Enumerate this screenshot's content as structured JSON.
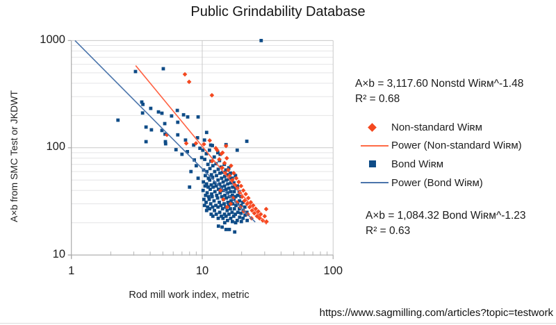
{
  "title": "Public Grindability Database",
  "footer_url": "https://www.sagmilling.com/articles?topic=testwork",
  "axes": {
    "x": {
      "title": "Rod mill work index, metric",
      "ticks": [
        "1",
        "10",
        "100"
      ]
    },
    "y": {
      "title": "A×b from SMC Test or JKDWT",
      "ticks": [
        "1000",
        "100",
        "10"
      ]
    }
  },
  "equations": {
    "nonstd": {
      "line1": "A×b = 3,117.60 Nonstd Wiʀᴍ^-1.48",
      "line2": "R² = 0.68",
      "color": "#f20d0d"
    },
    "bond": {
      "line1": "A×b = 1,084.32 Bond Wiʀᴍ^-1.23",
      "line2": "R² = 0.63",
      "color": "#1e5bad"
    }
  },
  "legend": [
    {
      "label": "Non-standard Wiʀᴍ",
      "marker": "diamond",
      "color": "#f4481f"
    },
    {
      "label": "Power (Non-standard Wiʀᴍ)",
      "marker": "line",
      "color": "#ff6a45"
    },
    {
      "label": "Bond Wiʀᴍ",
      "marker": "square",
      "color": "#0f4c87"
    },
    {
      "label": "Power (Bond Wiʀᴍ)",
      "marker": "line",
      "color": "#4a74ab"
    }
  ],
  "chart_data": {
    "type": "scatter",
    "title": "Public Grindability Database",
    "xlabel": "Rod mill work index, metric",
    "ylabel": "A×b from SMC Test or JKDWT",
    "x_scale": "log",
    "y_scale": "log",
    "x_range": [
      1,
      100
    ],
    "y_range": [
      10,
      1000
    ],
    "grid": "horizontal log minor + major, vertical major",
    "legend_position": "right",
    "series": [
      {
        "name": "Bond Wiʀᴍ",
        "marker": "square",
        "color": "#0f4c87",
        "points": [
          [
            2.27,
            181
          ],
          [
            3.09,
            514
          ],
          [
            5.04,
            546
          ],
          [
            3.45,
            267
          ],
          [
            3.52,
            254
          ],
          [
            4.04,
            233
          ],
          [
            3.5,
            211
          ],
          [
            4.63,
            216
          ],
          [
            4.92,
            210
          ],
          [
            5.83,
            198
          ],
          [
            6.45,
            223
          ],
          [
            7.2,
            203
          ],
          [
            7.74,
            194
          ],
          [
            9.3,
            194
          ],
          [
            6.5,
            173
          ],
          [
            3.72,
            156
          ],
          [
            4.09,
            147
          ],
          [
            4.92,
            145
          ],
          [
            5.17,
            168
          ],
          [
            6.5,
            132
          ],
          [
            3.72,
            114
          ],
          [
            5.23,
            114
          ],
          [
            5.25,
            109
          ],
          [
            5.2,
            134
          ],
          [
            8.0,
            43
          ],
          [
            9.3,
            52
          ],
          [
            6.3,
            96
          ],
          [
            7.0,
            87
          ],
          [
            7.7,
            92
          ],
          [
            8.7,
            77
          ],
          [
            9.9,
            81
          ],
          [
            8.2,
            60
          ],
          [
            9.0,
            68
          ],
          [
            7.45,
            118
          ],
          [
            8.6,
            106
          ],
          [
            9.6,
            99
          ],
          [
            10.4,
            118
          ],
          [
            9.2,
            124
          ],
          [
            10.8,
            139
          ],
          [
            11.6,
            106
          ],
          [
            21.9,
            115
          ],
          [
            18.5,
            95
          ],
          [
            15.2,
            107
          ],
          [
            13.7,
            87
          ],
          [
            28.2,
            1000
          ],
          [
            15.2,
            17.3
          ],
          [
            16.1,
            17.3
          ],
          [
            17.7,
            16.4
          ],
          [
            13.3,
            18.6
          ],
          [
            14.2,
            18.2
          ],
          [
            10.1,
            95
          ],
          [
            10.25,
            62
          ],
          [
            10.2,
            48
          ],
          [
            10.15,
            40
          ],
          [
            10.3,
            33
          ],
          [
            10.45,
            78
          ],
          [
            10.55,
            55
          ],
          [
            10.5,
            44
          ],
          [
            10.6,
            36
          ],
          [
            10.4,
            29
          ],
          [
            10.75,
            88
          ],
          [
            10.85,
            60
          ],
          [
            10.8,
            46
          ],
          [
            10.9,
            38
          ],
          [
            10.7,
            31
          ],
          [
            10.8,
            26
          ],
          [
            11.05,
            70
          ],
          [
            11.15,
            52
          ],
          [
            11.1,
            43
          ],
          [
            11.2,
            35
          ],
          [
            11.0,
            28
          ],
          [
            11.35,
            95
          ],
          [
            11.45,
            64
          ],
          [
            11.4,
            50
          ],
          [
            11.5,
            41
          ],
          [
            11.3,
            33
          ],
          [
            11.4,
            27
          ],
          [
            11.65,
            75
          ],
          [
            11.75,
            56
          ],
          [
            11.7,
            45
          ],
          [
            11.8,
            37
          ],
          [
            11.6,
            30
          ],
          [
            11.7,
            24
          ],
          [
            11.95,
            105
          ],
          [
            12.05,
            68
          ],
          [
            12.0,
            53
          ],
          [
            12.1,
            43
          ],
          [
            11.9,
            35
          ],
          [
            12.0,
            28
          ],
          [
            12.05,
            23
          ],
          [
            12.35,
            82
          ],
          [
            12.45,
            60
          ],
          [
            12.4,
            47
          ],
          [
            12.5,
            39
          ],
          [
            12.3,
            32
          ],
          [
            12.4,
            26
          ],
          [
            12.75,
            71
          ],
          [
            12.85,
            55
          ],
          [
            12.8,
            44
          ],
          [
            12.9,
            36
          ],
          [
            12.7,
            29
          ],
          [
            12.8,
            24
          ],
          [
            13.15,
            90
          ],
          [
            13.25,
            63
          ],
          [
            13.2,
            50
          ],
          [
            13.3,
            41
          ],
          [
            13.1,
            34
          ],
          [
            13.2,
            28
          ],
          [
            13.25,
            22
          ],
          [
            13.55,
            76
          ],
          [
            13.65,
            58
          ],
          [
            13.6,
            46
          ],
          [
            13.7,
            38
          ],
          [
            13.5,
            31
          ],
          [
            13.6,
            25
          ],
          [
            13.95,
            66
          ],
          [
            14.05,
            52
          ],
          [
            14.0,
            43
          ],
          [
            14.1,
            35
          ],
          [
            13.9,
            29
          ],
          [
            14.0,
            23
          ],
          [
            14.35,
            59
          ],
          [
            14.45,
            48
          ],
          [
            14.4,
            40
          ],
          [
            14.5,
            33
          ],
          [
            14.3,
            27
          ],
          [
            14.4,
            22
          ],
          [
            14.75,
            70
          ],
          [
            14.85,
            54
          ],
          [
            14.8,
            44
          ],
          [
            14.9,
            36
          ],
          [
            14.7,
            30
          ],
          [
            14.8,
            24
          ],
          [
            14.85,
            20
          ],
          [
            15.15,
            62
          ],
          [
            15.25,
            50
          ],
          [
            15.2,
            41
          ],
          [
            15.3,
            34
          ],
          [
            15.1,
            28
          ],
          [
            15.2,
            23
          ],
          [
            15.55,
            56
          ],
          [
            15.65,
            46
          ],
          [
            15.6,
            38
          ],
          [
            15.7,
            31
          ],
          [
            15.5,
            26
          ],
          [
            15.6,
            21
          ],
          [
            15.95,
            65
          ],
          [
            16.05,
            51
          ],
          [
            16.0,
            42
          ],
          [
            16.1,
            35
          ],
          [
            15.9,
            29
          ],
          [
            16.0,
            24
          ],
          [
            16.45,
            58
          ],
          [
            16.55,
            47
          ],
          [
            16.5,
            39
          ],
          [
            16.6,
            32
          ],
          [
            16.4,
            27
          ],
          [
            16.5,
            22
          ],
          [
            16.95,
            52
          ],
          [
            17.05,
            43
          ],
          [
            17.0,
            36
          ],
          [
            17.1,
            30
          ],
          [
            16.9,
            25
          ],
          [
            17.0,
            20.5
          ],
          [
            17.45,
            47
          ],
          [
            17.55,
            39
          ],
          [
            17.5,
            33
          ],
          [
            17.6,
            27
          ],
          [
            17.4,
            23
          ],
          [
            17.95,
            55
          ],
          [
            18.05,
            42
          ],
          [
            18.0,
            35
          ],
          [
            18.1,
            29
          ],
          [
            17.9,
            24
          ],
          [
            18.0,
            20
          ],
          [
            18.55,
            44
          ],
          [
            18.65,
            36
          ],
          [
            18.6,
            30
          ],
          [
            18.7,
            25
          ],
          [
            18.5,
            21
          ],
          [
            19.15,
            39
          ],
          [
            19.25,
            32
          ],
          [
            19.2,
            27
          ],
          [
            19.3,
            22.5
          ],
          [
            19.75,
            35
          ],
          [
            19.85,
            29
          ],
          [
            19.8,
            24.5
          ],
          [
            19.9,
            20.5
          ],
          [
            20.45,
            31
          ],
          [
            20.55,
            26
          ],
          [
            20.5,
            22
          ],
          [
            21.15,
            28
          ],
          [
            21.25,
            23.5
          ],
          [
            21.95,
            25
          ],
          [
            22.05,
            21
          ]
        ]
      },
      {
        "name": "Non-standard Wiʀᴍ",
        "marker": "diamond",
        "color": "#f4481f",
        "points": [
          [
            7.37,
            484
          ],
          [
            7.94,
            412
          ],
          [
            11.85,
            309
          ],
          [
            5.37,
            132
          ],
          [
            7.55,
            110
          ],
          [
            8.95,
            110
          ],
          [
            10.3,
            108
          ],
          [
            11.4,
            117
          ],
          [
            12.7,
            99
          ],
          [
            11.9,
            75
          ],
          [
            14.3,
            90
          ],
          [
            15.2,
            104
          ],
          [
            13.0,
            95
          ],
          [
            13.5,
            78
          ],
          [
            14.0,
            88
          ],
          [
            14.2,
            65
          ],
          [
            14.8,
            72
          ],
          [
            15.0,
            58
          ],
          [
            15.4,
            80
          ],
          [
            15.8,
            62
          ],
          [
            16.2,
            55
          ],
          [
            16.6,
            68
          ],
          [
            17.0,
            50
          ],
          [
            17.4,
            58
          ],
          [
            17.8,
            45
          ],
          [
            18.2,
            52
          ],
          [
            18.6,
            42
          ],
          [
            19.0,
            48
          ],
          [
            19.4,
            38
          ],
          [
            19.8,
            44
          ],
          [
            20.2,
            35
          ],
          [
            20.6,
            40
          ],
          [
            21.0,
            32
          ],
          [
            21.5,
            37
          ],
          [
            22.0,
            30
          ],
          [
            22.5,
            34
          ],
          [
            23.0,
            28
          ],
          [
            23.5,
            31
          ],
          [
            24.0,
            26
          ],
          [
            24.5,
            29
          ],
          [
            25.0,
            24.5
          ],
          [
            25.6,
            27
          ],
          [
            26.2,
            23
          ],
          [
            26.8,
            25.5
          ],
          [
            27.4,
            22
          ],
          [
            28.0,
            24
          ],
          [
            29.0,
            21
          ],
          [
            30.0,
            23
          ],
          [
            30.8,
            26.8
          ],
          [
            31.0,
            20.5
          ],
          [
            14.5,
            33
          ],
          [
            15.5,
            28
          ],
          [
            16.5,
            30
          ],
          [
            13.8,
            40
          ],
          [
            17.2,
            34
          ],
          [
            18.4,
            31
          ],
          [
            19.6,
            28
          ],
          [
            20.8,
            25.5
          ],
          [
            22.3,
            24
          ],
          [
            23.8,
            22
          ]
        ]
      }
    ],
    "trendlines": [
      {
        "name": "Power (Bond Wiʀᴍ)",
        "equation": "A×b = 1,084.32 Bond Wiʀᴍ^-1.23",
        "r2": 0.63,
        "coef_a": 1084.32,
        "exp_b": -1.23,
        "x_start": 1.066,
        "x_end": 25.4,
        "color": "#4a74ab"
      },
      {
        "name": "Power (Non-standard Wiʀᴍ)",
        "equation": "A×b = 3,117.60 Nonstd Wiʀᴍ^-1.48",
        "r2": 0.68,
        "coef_a": 3117.6,
        "exp_b": -1.48,
        "x_start": 3.1,
        "x_end": 31.0,
        "color": "#ff6243"
      }
    ]
  }
}
